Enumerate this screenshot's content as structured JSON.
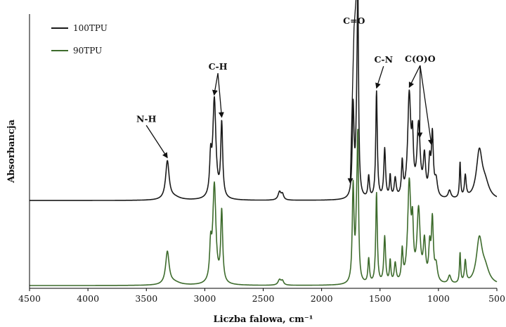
{
  "chart_data": {
    "type": "line",
    "title": "",
    "xlabel": "Liczba falowa, cm⁻¹",
    "ylabel": "Absorbancja",
    "xlim": [
      4500,
      500
    ],
    "ylim": [
      0,
      1
    ],
    "x_reversed": true,
    "x_ticks": [
      "4500",
      "4000",
      "3500",
      "3000",
      "2500",
      "2000",
      "1500",
      "1000",
      "500"
    ],
    "y_ticks_shown": false,
    "grid": false,
    "legend_position": "top-left",
    "series": [
      {
        "name": "100TPU",
        "color": "#1a1a1a",
        "baseline": 0.32,
        "peaks": [
          {
            "x": 3320,
            "h": 0.14,
            "w": 18
          },
          {
            "x": 3260,
            "h": 0.01,
            "w": 60
          },
          {
            "x": 2950,
            "h": 0.13,
            "w": 10
          },
          {
            "x": 2918,
            "h": 0.36,
            "w": 16
          },
          {
            "x": 2855,
            "h": 0.27,
            "w": 10
          },
          {
            "x": 2360,
            "h": 0.03,
            "w": 15
          },
          {
            "x": 2335,
            "h": 0.02,
            "w": 12
          },
          {
            "x": 1730,
            "h": 0.33,
            "w": 9
          },
          {
            "x": 1700,
            "h": 0.16,
            "w": 10
          },
          {
            "x": 1690,
            "h": 0.72,
            "w": 7
          },
          {
            "x": 1597,
            "h": 0.08,
            "w": 8
          },
          {
            "x": 1530,
            "h": 0.39,
            "w": 8
          },
          {
            "x": 1460,
            "h": 0.18,
            "w": 9
          },
          {
            "x": 1413,
            "h": 0.08,
            "w": 7
          },
          {
            "x": 1370,
            "h": 0.07,
            "w": 10
          },
          {
            "x": 1310,
            "h": 0.12,
            "w": 8
          },
          {
            "x": 1250,
            "h": 0.37,
            "w": 16
          },
          {
            "x": 1222,
            "h": 0.17,
            "w": 9
          },
          {
            "x": 1170,
            "h": 0.26,
            "w": 16
          },
          {
            "x": 1120,
            "h": 0.14,
            "w": 12
          },
          {
            "x": 1075,
            "h": 0.12,
            "w": 10
          },
          {
            "x": 1052,
            "h": 0.22,
            "w": 10
          },
          {
            "x": 1020,
            "h": 0.06,
            "w": 14
          },
          {
            "x": 905,
            "h": 0.03,
            "w": 14
          },
          {
            "x": 815,
            "h": 0.13,
            "w": 6
          },
          {
            "x": 770,
            "h": 0.08,
            "w": 9
          },
          {
            "x": 650,
            "h": 0.17,
            "w": 30
          },
          {
            "x": 600,
            "h": 0.05,
            "w": 40
          }
        ]
      },
      {
        "name": "90TPU",
        "color": "#3d6b2c",
        "baseline": 0.01,
        "peaks": [
          {
            "x": 3320,
            "h": 0.12,
            "w": 18
          },
          {
            "x": 3260,
            "h": 0.01,
            "w": 60
          },
          {
            "x": 2950,
            "h": 0.12,
            "w": 10
          },
          {
            "x": 2918,
            "h": 0.36,
            "w": 16
          },
          {
            "x": 2855,
            "h": 0.26,
            "w": 10
          },
          {
            "x": 2360,
            "h": 0.02,
            "w": 15
          },
          {
            "x": 2335,
            "h": 0.015,
            "w": 12
          },
          {
            "x": 1730,
            "h": 0.35,
            "w": 9
          },
          {
            "x": 1700,
            "h": 0.18,
            "w": 10
          },
          {
            "x": 1690,
            "h": 0.46,
            "w": 7
          },
          {
            "x": 1597,
            "h": 0.09,
            "w": 8
          },
          {
            "x": 1530,
            "h": 0.33,
            "w": 8
          },
          {
            "x": 1460,
            "h": 0.17,
            "w": 9
          },
          {
            "x": 1413,
            "h": 0.08,
            "w": 7
          },
          {
            "x": 1370,
            "h": 0.07,
            "w": 10
          },
          {
            "x": 1310,
            "h": 0.11,
            "w": 8
          },
          {
            "x": 1250,
            "h": 0.36,
            "w": 16
          },
          {
            "x": 1222,
            "h": 0.17,
            "w": 9
          },
          {
            "x": 1170,
            "h": 0.26,
            "w": 16
          },
          {
            "x": 1120,
            "h": 0.14,
            "w": 12
          },
          {
            "x": 1075,
            "h": 0.12,
            "w": 10
          },
          {
            "x": 1052,
            "h": 0.22,
            "w": 10
          },
          {
            "x": 1020,
            "h": 0.06,
            "w": 14
          },
          {
            "x": 905,
            "h": 0.03,
            "w": 14
          },
          {
            "x": 815,
            "h": 0.11,
            "w": 6
          },
          {
            "x": 770,
            "h": 0.08,
            "w": 9
          },
          {
            "x": 650,
            "h": 0.16,
            "w": 30
          },
          {
            "x": 600,
            "h": 0.05,
            "w": 40
          }
        ]
      }
    ],
    "annotations": [
      {
        "label": "N-H",
        "targets": [
          3320
        ]
      },
      {
        "label": "C-H",
        "targets": [
          2920,
          2855
        ]
      },
      {
        "label": "C=O",
        "targets": [
          1755,
          1690
        ]
      },
      {
        "label": "C-N",
        "targets": [
          1530
        ]
      },
      {
        "label": "C(O)O",
        "targets": [
          1250,
          1160,
          1060
        ]
      }
    ]
  }
}
